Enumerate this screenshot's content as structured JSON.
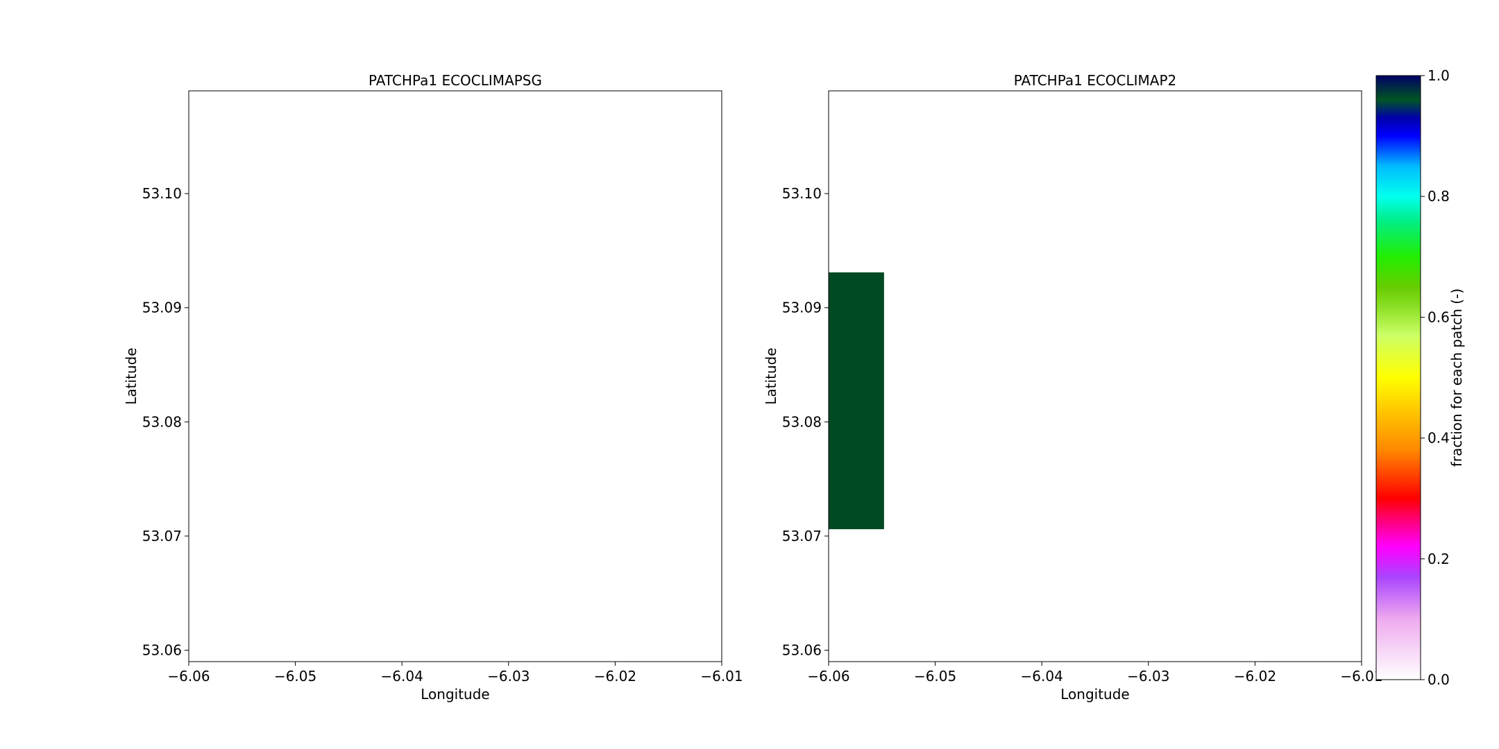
{
  "chart_data": [
    {
      "type": "heatmap",
      "title": "PATCHPa1 ECOCLIMAPSG",
      "xlabel": "Longitude",
      "ylabel": "Latitude",
      "xlim": [
        -6.06,
        -6.01
      ],
      "ylim": [
        53.059,
        53.109
      ],
      "xticks": [
        -6.06,
        -6.05,
        -6.04,
        -6.03,
        -6.02,
        -6.01
      ],
      "xtick_labels": [
        "−6.06",
        "−6.05",
        "−6.04",
        "−6.03",
        "−6.02",
        "−6.01"
      ],
      "yticks": [
        53.06,
        53.07,
        53.08,
        53.09,
        53.1
      ],
      "ytick_labels": [
        "53.06",
        "53.07",
        "53.08",
        "53.09",
        "53.10"
      ],
      "cells": []
    },
    {
      "type": "heatmap",
      "title": "PATCHPa1 ECOCLIMAP2",
      "xlabel": "Longitude",
      "ylabel": "Latitude",
      "xlim": [
        -6.06,
        -6.01
      ],
      "ylim": [
        53.059,
        53.109
      ],
      "xticks": [
        -6.06,
        -6.05,
        -6.04,
        -6.03,
        -6.02,
        -6.01
      ],
      "xtick_labels": [
        "−6.06",
        "−6.05",
        "−6.04",
        "−6.03",
        "−6.02",
        "−6.01"
      ],
      "yticks": [
        53.06,
        53.07,
        53.08,
        53.09,
        53.1
      ],
      "ytick_labels": [
        "53.06",
        "53.07",
        "53.08",
        "53.09",
        "53.10"
      ],
      "cells": [
        {
          "x0": -6.06,
          "x1": -6.0548,
          "y0": 53.0706,
          "y1": 53.0931,
          "value": 0.97,
          "color": "#004a23"
        }
      ]
    }
  ],
  "colorbar": {
    "label": "fraction for each patch (-)",
    "range": [
      0.0,
      1.0
    ],
    "ticks": [
      0.0,
      0.2,
      0.4,
      0.6,
      0.8,
      1.0
    ],
    "tick_labels": [
      "0.0",
      "0.2",
      "0.4",
      "0.6",
      "0.8",
      "1.0"
    ],
    "colormap": [
      {
        "stop": 0.0,
        "color": "#ffffff"
      },
      {
        "stop": 0.1,
        "color": "#eeaaee"
      },
      {
        "stop": 0.17,
        "color": "#aa44ff"
      },
      {
        "stop": 0.22,
        "color": "#ff00ff"
      },
      {
        "stop": 0.27,
        "color": "#ff0066"
      },
      {
        "stop": 0.3,
        "color": "#ff0000"
      },
      {
        "stop": 0.38,
        "color": "#ff8800"
      },
      {
        "stop": 0.45,
        "color": "#ffcc00"
      },
      {
        "stop": 0.5,
        "color": "#ffff00"
      },
      {
        "stop": 0.57,
        "color": "#ccff66"
      },
      {
        "stop": 0.62,
        "color": "#88dd22"
      },
      {
        "stop": 0.65,
        "color": "#66cc00"
      },
      {
        "stop": 0.7,
        "color": "#22ee00"
      },
      {
        "stop": 0.76,
        "color": "#00ee88"
      },
      {
        "stop": 0.8,
        "color": "#00ffee"
      },
      {
        "stop": 0.85,
        "color": "#00bbff"
      },
      {
        "stop": 0.9,
        "color": "#0000ff"
      },
      {
        "stop": 0.93,
        "color": "#0000aa"
      },
      {
        "stop": 0.96,
        "color": "#005522"
      },
      {
        "stop": 1.0,
        "color": "#000066"
      }
    ]
  }
}
